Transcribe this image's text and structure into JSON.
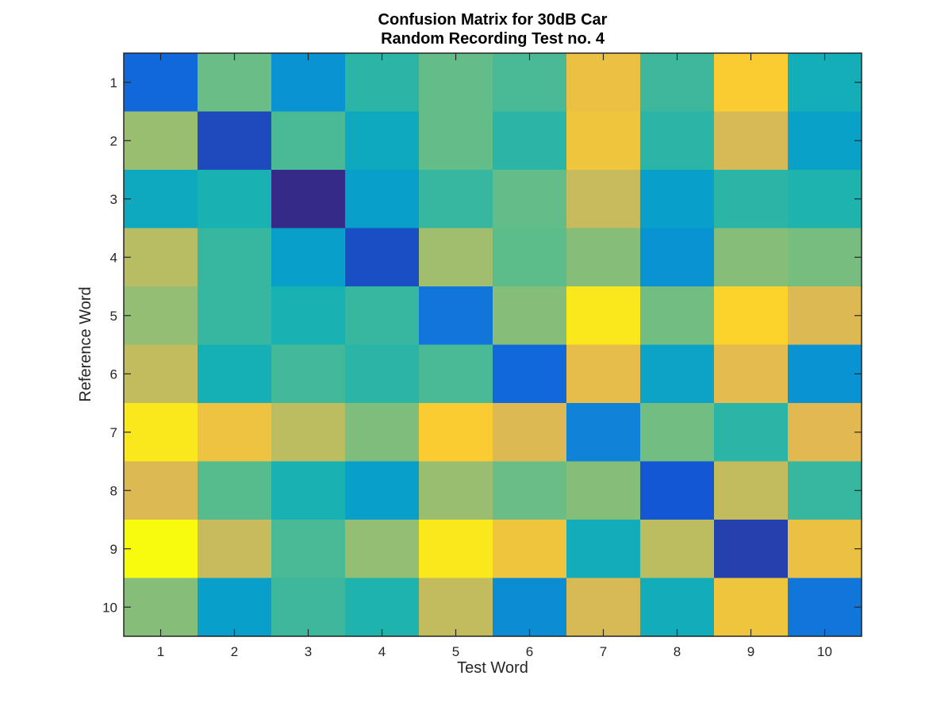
{
  "chart_data": {
    "type": "heatmap",
    "title": [
      "Confusion Matrix for 30dB Car",
      "Random Recording Test no. 4"
    ],
    "xlabel": "Test Word",
    "ylabel": "Reference Word",
    "x_ticks": [
      "1",
      "2",
      "3",
      "4",
      "5",
      "6",
      "7",
      "8",
      "9",
      "10"
    ],
    "y_ticks": [
      "1",
      "2",
      "3",
      "4",
      "5",
      "6",
      "7",
      "8",
      "9",
      "10"
    ],
    "colormap": "parula",
    "value_range": [
      0,
      1
    ],
    "grid": false,
    "legend": "none",
    "values": [
      [
        0.15,
        0.58,
        0.3,
        0.48,
        0.57,
        0.53,
        0.82,
        0.51,
        0.88,
        0.43
      ],
      [
        0.65,
        0.07,
        0.53,
        0.4,
        0.57,
        0.48,
        0.84,
        0.48,
        0.76,
        0.36
      ],
      [
        0.4,
        0.45,
        0.0,
        0.35,
        0.5,
        0.57,
        0.73,
        0.35,
        0.48,
        0.46
      ],
      [
        0.7,
        0.5,
        0.35,
        0.08,
        0.66,
        0.56,
        0.62,
        0.3,
        0.62,
        0.6
      ],
      [
        0.64,
        0.5,
        0.45,
        0.5,
        0.2,
        0.62,
        0.95,
        0.59,
        0.9,
        0.77
      ],
      [
        0.72,
        0.44,
        0.52,
        0.48,
        0.53,
        0.15,
        0.8,
        0.37,
        0.79,
        0.3
      ],
      [
        0.95,
        0.83,
        0.71,
        0.61,
        0.88,
        0.77,
        0.24,
        0.59,
        0.48,
        0.78
      ],
      [
        0.77,
        0.55,
        0.45,
        0.35,
        0.65,
        0.58,
        0.62,
        0.1,
        0.72,
        0.5
      ],
      [
        1.0,
        0.73,
        0.53,
        0.64,
        0.95,
        0.84,
        0.42,
        0.71,
        0.05,
        0.82
      ],
      [
        0.62,
        0.35,
        0.51,
        0.46,
        0.72,
        0.28,
        0.76,
        0.42,
        0.84,
        0.2
      ]
    ]
  }
}
